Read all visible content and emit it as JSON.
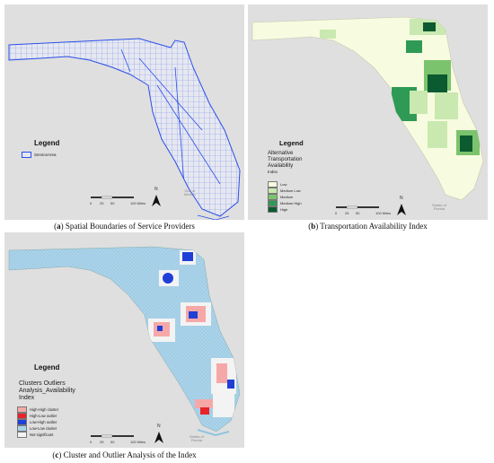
{
  "panels": [
    {
      "id": "a",
      "caption_letter": "(a)",
      "caption_text": "Spatial Boundaries of Service Providers",
      "legend_title": "Legend",
      "legend_items": [
        {
          "label": "ServiceArea",
          "color": "#e6e8f2"
        }
      ],
      "outline_color": "#2b4ee8",
      "land_color": "#e6e8f0"
    },
    {
      "id": "b",
      "caption_letter": "(b)",
      "caption_text": "Transportation Availability Index",
      "legend_title": "Legend",
      "legend_subtitle": [
        "Alternative",
        "Transportation",
        "Availability",
        "Index"
      ],
      "legend_items": [
        {
          "label": "Low",
          "color": "#f7fbe0"
        },
        {
          "label": "Medium Low",
          "color": "#c9e9b0"
        },
        {
          "label": "Medium",
          "color": "#7cc36e"
        },
        {
          "label": "Medium High",
          "color": "#2f9a55"
        },
        {
          "label": "High",
          "color": "#0c5a30"
        }
      ]
    },
    {
      "id": "c",
      "caption_letter": "(c)",
      "caption_text": "Cluster and Outlier Analysis of the Index",
      "legend_title": "Legend",
      "legend_subtitle": [
        "Clusters Outliers",
        "Analysis_Availability",
        "Index"
      ],
      "legend_items": [
        {
          "label": "High-High cluster",
          "color": "#f6a8a8"
        },
        {
          "label": "High-Low outlier",
          "color": "#e8232a"
        },
        {
          "label": "Low-High outlier",
          "color": "#1f3fd6"
        },
        {
          "label": "Low-Low cluster",
          "color": "#a8d4ec"
        },
        {
          "label": "Not significant",
          "color": "#f3f3f3"
        }
      ]
    }
  ],
  "scale": {
    "ticks": [
      "0",
      "25",
      "50",
      "100 Miles"
    ]
  },
  "north_label": "N",
  "place_label": [
    "Gulf of",
    "Mexico"
  ],
  "place_label_2": [
    "Straits of",
    "Florida"
  ]
}
